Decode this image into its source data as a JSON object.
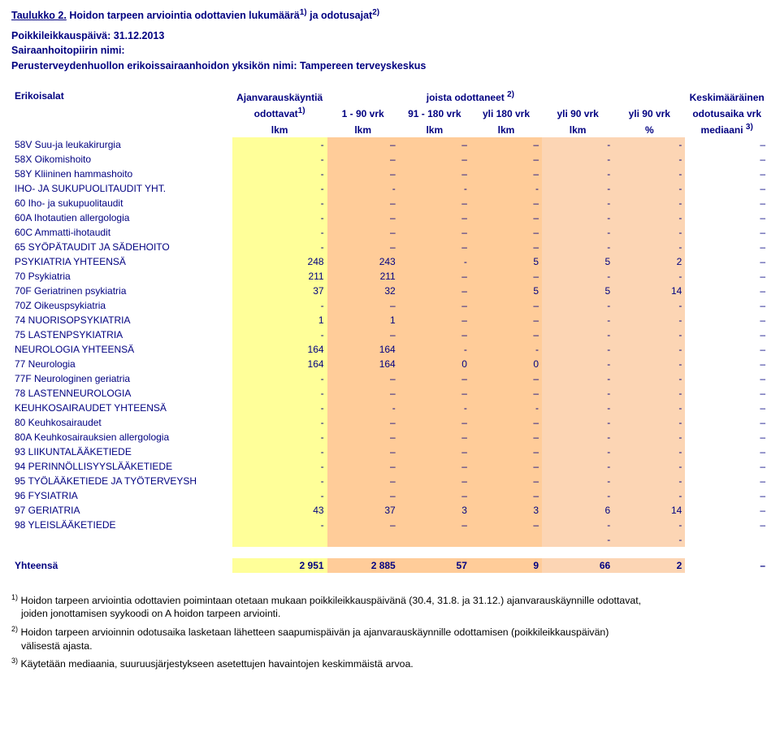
{
  "title": {
    "underlined": "Taulukko 2.",
    "rest": "Hoidon tarpeen arviointia odottavien lukumäärä",
    "sup1": "1)",
    "and": " ja odotusajat",
    "sup2": "2)"
  },
  "meta": {
    "cutoff": "Poikkileikkauspäivä: 31.12.2013",
    "district_label": "Sairaanhoitopiirin nimi:",
    "unit": "Perusterveydenhuollon erikoissairaanhoidon yksikön nimi: Tampereen terveyskeskus"
  },
  "header": {
    "c1": "Erikoisalat",
    "c2_top": "Ajanvarauskäyntiä",
    "c2_mid": "odottavat",
    "c2_sup": "1)",
    "c2_bot": "lkm",
    "mid_top": "joista odottaneet ",
    "mid_sup": "2)",
    "c3a": "1 - 90 vrk",
    "c3b": "lkm",
    "c4a": "91 - 180 vrk",
    "c4b": "lkm",
    "c5a": "yli 180 vrk",
    "c5b": "lkm",
    "c6a": "yli 90 vrk",
    "c6b": "lkm",
    "c7a": "yli 90 vrk",
    "c7b": "%",
    "c8_top": "Keskimääräinen",
    "c8_mid": "odotusaika vrk",
    "c8_sup": "3)",
    "c8_bot": "mediaani "
  },
  "rows": [
    {
      "label": "58V Suu-ja leukakirurgia",
      "v": [
        "-",
        "–",
        "–",
        "–",
        "-",
        "-",
        "–"
      ]
    },
    {
      "label": "58X Oikomishoito",
      "v": [
        "-",
        "–",
        "–",
        "–",
        "-",
        "-",
        "–"
      ]
    },
    {
      "label": "58Y Kliininen hammashoito",
      "v": [
        "-",
        "–",
        "–",
        "–",
        "-",
        "-",
        "–"
      ]
    },
    {
      "label": "IHO- JA SUKUPUOLITAUDIT YHT.",
      "v": [
        "-",
        "-",
        "-",
        "-",
        "-",
        "-",
        "–"
      ]
    },
    {
      "label": "60 Iho- ja sukupuolitaudit",
      "v": [
        "-",
        "–",
        "–",
        "–",
        "-",
        "-",
        "–"
      ]
    },
    {
      "label": "60A Ihotautien allergologia",
      "v": [
        "-",
        "–",
        "–",
        "–",
        "-",
        "-",
        "–"
      ]
    },
    {
      "label": "60C Ammatti-ihotaudit",
      "v": [
        "-",
        "–",
        "–",
        "–",
        "-",
        "-",
        "–"
      ]
    },
    {
      "label": "65 SYÖPÄTAUDIT JA SÄDEHOITO",
      "v": [
        "-",
        "–",
        "–",
        "–",
        "-",
        "-",
        "–"
      ]
    },
    {
      "label": "PSYKIATRIA YHTEENSÄ",
      "v": [
        "248",
        "243",
        "-",
        "5",
        "5",
        "2",
        "–"
      ]
    },
    {
      "label": "70 Psykiatria",
      "v": [
        "211",
        "211",
        "–",
        "–",
        "-",
        "-",
        "–"
      ]
    },
    {
      "label": "70F Geriatrinen psykiatria",
      "v": [
        "37",
        "32",
        "–",
        "5",
        "5",
        "14",
        "–"
      ]
    },
    {
      "label": "70Z Oikeuspsykiatria",
      "v": [
        "-",
        "–",
        "–",
        "–",
        "-",
        "-",
        "–"
      ]
    },
    {
      "label": "74 NUORISOPSYKIATRIA",
      "v": [
        "1",
        "1",
        "–",
        "–",
        "-",
        "-",
        "–"
      ]
    },
    {
      "label": "75 LASTENPSYKIATRIA",
      "v": [
        "-",
        "–",
        "–",
        "–",
        "-",
        "-",
        "–"
      ]
    },
    {
      "label": "NEUROLOGIA YHTEENSÄ",
      "v": [
        "164",
        "164",
        "-",
        "-",
        "-",
        "-",
        "–"
      ]
    },
    {
      "label": "77 Neurologia",
      "v": [
        "164",
        "164",
        "0",
        "0",
        "-",
        "-",
        "–"
      ]
    },
    {
      "label": "77F Neurologinen geriatria",
      "v": [
        "-",
        "–",
        "–",
        "–",
        "-",
        "-",
        "–"
      ]
    },
    {
      "label": "78 LASTENNEUROLOGIA",
      "v": [
        "-",
        "–",
        "–",
        "–",
        "-",
        "-",
        "–"
      ]
    },
    {
      "label": "KEUHKOSAIRAUDET YHTEENSÄ",
      "v": [
        "-",
        "-",
        "-",
        "-",
        "-",
        "-",
        "–"
      ]
    },
    {
      "label": "80 Keuhkosairaudet",
      "v": [
        "-",
        "–",
        "–",
        "–",
        "-",
        "-",
        "–"
      ]
    },
    {
      "label": "80A Keuhkosairauksien allergologia",
      "v": [
        "-",
        "–",
        "–",
        "–",
        "-",
        "-",
        "–"
      ]
    },
    {
      "label": "93 LIIKUNTALÄÄKETIEDE",
      "v": [
        "-",
        "–",
        "–",
        "–",
        "-",
        "-",
        "–"
      ]
    },
    {
      "label": "94 PERINNÖLLISYYSLÄÄKETIEDE",
      "v": [
        "-",
        "–",
        "–",
        "–",
        "-",
        "-",
        "–"
      ]
    },
    {
      "label": "95 TYÖLÄÄKETIEDE JA TYÖTERVEYSH",
      "v": [
        "-",
        "–",
        "–",
        "–",
        "-",
        "-",
        "–"
      ]
    },
    {
      "label": "96 FYSIATRIA",
      "v": [
        "-",
        "–",
        "–",
        "–",
        "-",
        "-",
        "–"
      ]
    },
    {
      "label": "97 GERIATRIA",
      "v": [
        "43",
        "37",
        "3",
        "3",
        "6",
        "14",
        "–"
      ]
    },
    {
      "label": "98 YLEISLÄÄKETIEDE",
      "v": [
        "-",
        "–",
        "–",
        "–",
        "-",
        "-",
        "–"
      ]
    },
    {
      "label": "",
      "v": [
        "",
        "",
        "",
        "",
        "-",
        "-",
        ""
      ]
    }
  ],
  "totals": {
    "label": "Yhteensä",
    "v": [
      "2 951",
      "2 885",
      "57",
      "9",
      "66",
      "2",
      "–"
    ]
  },
  "footnotes": {
    "f1": "Hoidon tarpeen arviointia odottavien poimintaan otetaan mukaan poikkileikkauspäivänä (30.4, 31.8. ja 31.12.) ajanvarauskäynnille odottavat,",
    "f1_cont": "joiden jonottamisen syykoodi on A hoidon tarpeen arviointi.",
    "f2": "Hoidon tarpeen arvioinnin odotusaika lasketaan lähetteen saapumispäivän ja ajanvarauskäynnille odottamisen (poikkileikkauspäivän)",
    "f2_cont": "välisestä ajasta.",
    "f3": "Käytetään mediaania, suuruusjärjestykseen asetettujen havaintojen keskimmäistä arvoa."
  },
  "style": {
    "title_color": "#000080",
    "fill_yellow": "#ffff99",
    "fill_orange1": "#ffcc99",
    "fill_orange2": "#fcd5b4"
  }
}
